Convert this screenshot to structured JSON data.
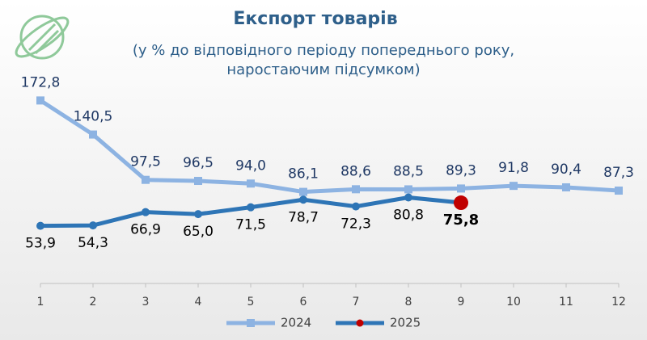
{
  "chart_data": {
    "type": "line",
    "title": "Експорт товарів",
    "subtitle": [
      "(у % до відповідного періоду попереднього року,",
      "наростаючим підсумком)"
    ],
    "categories": [
      "1",
      "2",
      "3",
      "4",
      "5",
      "6",
      "7",
      "8",
      "9",
      "10",
      "11",
      "12"
    ],
    "series": [
      {
        "name": "2024",
        "color": "#8db3e2",
        "marker": "square",
        "values": [
          172.8,
          140.5,
          97.5,
          96.5,
          94.0,
          86.1,
          88.6,
          88.5,
          89.3,
          91.8,
          90.4,
          87.3
        ],
        "value_labels": [
          "172,8",
          "140,5",
          "97,5",
          "96,5",
          "94,0",
          "86,1",
          "88,6",
          "88,5",
          "89,3",
          "91,8",
          "90,4",
          "87,3"
        ]
      },
      {
        "name": "2025",
        "color": "#2e75b6",
        "marker": "circle",
        "values": [
          53.9,
          54.3,
          66.9,
          65.0,
          71.5,
          78.7,
          72.3,
          80.8,
          75.8,
          null,
          null,
          null
        ],
        "value_labels": [
          "53,9",
          "54,3",
          "66,9",
          "65,0",
          "71,5",
          "78,7",
          "72,3",
          "80,8",
          "75,8",
          null,
          null,
          null
        ]
      }
    ],
    "highlight": {
      "series": 1,
      "index": 8,
      "color": "#c00000"
    },
    "ylim": [
      0,
      180
    ],
    "legend": "bottom"
  }
}
